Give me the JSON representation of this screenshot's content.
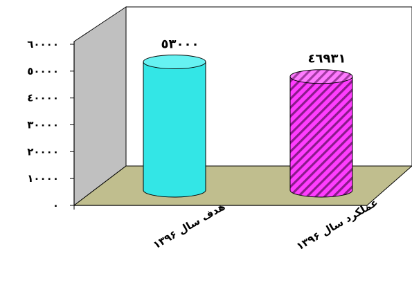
{
  "chart_data": {
    "type": "bar",
    "categories": [
      "هدف سال ۱۳۹۶",
      "عملکرد سال ۱۳۹۶"
    ],
    "values": [
      53000,
      46931
    ],
    "value_labels": [
      "٥٣٠٠٠",
      "٤٦٩٣١"
    ],
    "ylim": [
      0,
      60000
    ],
    "y_ticks": [
      0,
      10000,
      20000,
      30000,
      40000,
      50000,
      60000
    ],
    "y_tick_labels": [
      "٠",
      "١٠٠٠٠",
      "٢٠٠٠٠",
      "٣٠٠٠٠",
      "٤٠٠٠٠",
      "٥٠٠٠٠",
      "٦٠٠٠٠"
    ],
    "grid": false,
    "style": "3d-cylinder",
    "bar_colors": [
      "#33E6E6",
      "#FF3DFF"
    ],
    "bar_patterns": [
      "solid",
      "diagonal-stripes"
    ],
    "wall_color": "#C0C0C0",
    "floor_color": "#C0BE8E",
    "title": "",
    "xlabel": "",
    "ylabel": ""
  }
}
